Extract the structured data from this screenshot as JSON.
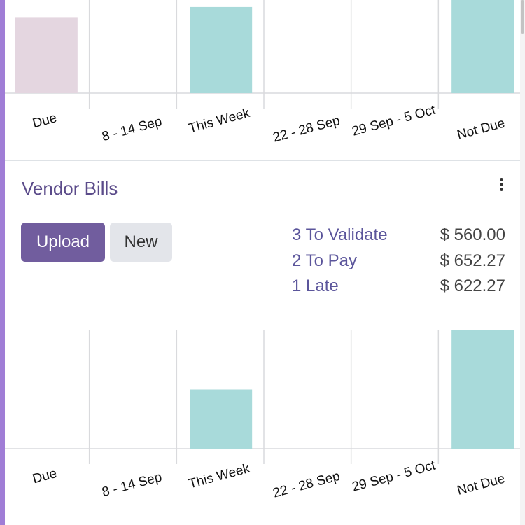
{
  "colors": {
    "accent": "#a07dd6",
    "bar": "#a8dada",
    "bar_faded": "#e4d6e0",
    "grid": "#d9dadd",
    "title": "#5b4b8a",
    "link": "#5b559b",
    "primary_button": "#715d9e"
  },
  "vendor_bills": {
    "title": "Vendor Bills",
    "menu_icon": "kebab-vertical-icon",
    "upload_label": "Upload",
    "new_label": "New",
    "summary": [
      {
        "label": "3 To Validate",
        "amount": "$ 560.00"
      },
      {
        "label": "2 To Pay",
        "amount": "$ 652.27"
      },
      {
        "label": "1 Late",
        "amount": "$ 622.27"
      }
    ]
  },
  "chart_data": [
    {
      "type": "bar",
      "categories": [
        "Due",
        "8 - 14 Sep",
        "This Week",
        "22 - 28 Sep",
        "29 Sep - 5 Oct",
        "Not Due"
      ],
      "values": [
        0.6,
        0,
        0.68,
        0,
        0,
        0.85
      ],
      "faded": [
        true,
        false,
        false,
        false,
        false,
        false
      ],
      "ylim": [
        0,
        1
      ]
    },
    {
      "type": "bar",
      "categories": [
        "Due",
        "8 - 14 Sep",
        "This Week",
        "22 - 28 Sep",
        "29 Sep - 5 Oct",
        "Not Due"
      ],
      "values": [
        0,
        0,
        0.5,
        0,
        0,
        1
      ],
      "ylim": [
        0,
        1
      ]
    }
  ]
}
